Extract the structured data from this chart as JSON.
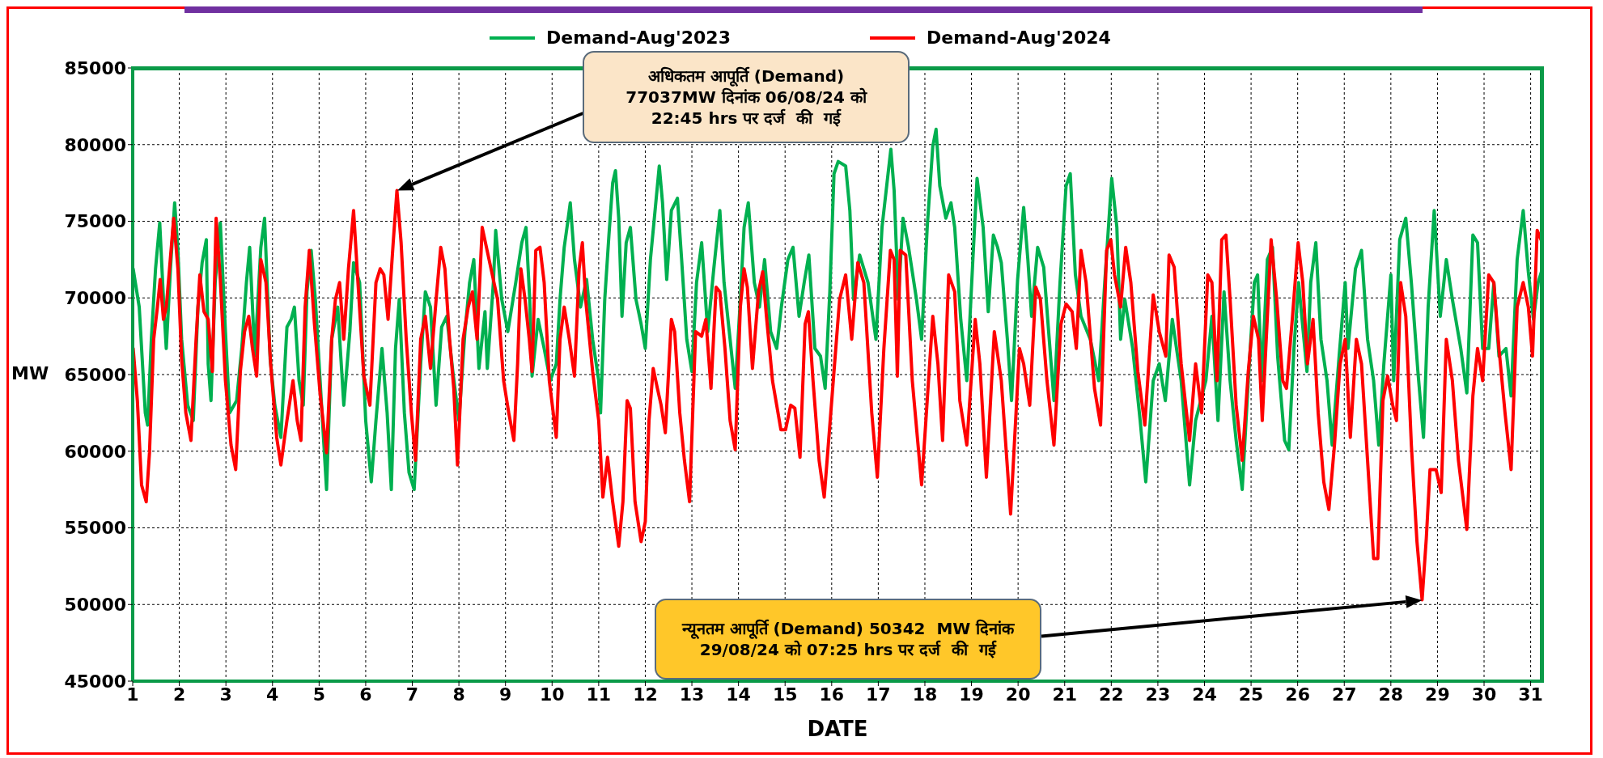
{
  "chart_data": {
    "type": "line",
    "xlabel": "DATE",
    "ylabel": "MW",
    "xlim": [
      1,
      31.25
    ],
    "xticks": [
      1,
      2,
      3,
      4,
      5,
      6,
      7,
      8,
      9,
      10,
      11,
      12,
      13,
      14,
      15,
      16,
      17,
      18,
      19,
      20,
      21,
      22,
      23,
      24,
      25,
      26,
      27,
      28,
      29,
      30,
      31
    ],
    "ylim": [
      45000,
      85000
    ],
    "yticks": [
      45000,
      50000,
      55000,
      60000,
      65000,
      70000,
      75000,
      80000,
      85000
    ],
    "grid": true,
    "legend": "top",
    "annotations": [
      "अधिकतम आपूर्ति (Demand)\n77037MW दिनांक 06/08/24 को\n22:45 hrs पर दर्ज  की  गई",
      "न्यूनतम आपूर्ति (Demand) 50342  MW दिनांक\n29/08/24 को 07:25 hrs पर दर्ज  की  गई"
    ],
    "series": [
      {
        "name": "Demand-Aug'2023",
        "color": "#00b050",
        "x": [
          1.01,
          1.14,
          1.27,
          1.32,
          1.4,
          1.49,
          1.58,
          1.66,
          1.72,
          1.81,
          1.9,
          1.97,
          2.05,
          2.18,
          2.3,
          2.4,
          2.49,
          2.58,
          2.62,
          2.68,
          2.77,
          2.88,
          2.99,
          3.08,
          3.23,
          3.34,
          3.44,
          3.51,
          3.62,
          3.75,
          3.83,
          3.95,
          4.05,
          4.18,
          4.31,
          4.4,
          4.47,
          4.57,
          4.66,
          4.74,
          4.83,
          4.92,
          5.01,
          5.16,
          5.27,
          5.4,
          5.53,
          5.66,
          5.74,
          5.87,
          6.0,
          6.12,
          6.22,
          6.35,
          6.46,
          6.55,
          6.64,
          6.72,
          6.83,
          6.93,
          7.04,
          7.18,
          7.28,
          7.39,
          7.51,
          7.63,
          7.74,
          7.87,
          8.0,
          8.13,
          8.23,
          8.32,
          8.43,
          8.56,
          8.61,
          8.74,
          8.79,
          8.92,
          9.05,
          9.22,
          9.35,
          9.44,
          9.52,
          9.57,
          9.7,
          9.83,
          9.96,
          10.09,
          10.17,
          10.26,
          10.32,
          10.39,
          10.48,
          10.61,
          10.74,
          10.87,
          11.0,
          11.04,
          11.13,
          11.22,
          11.3,
          11.36,
          11.43,
          11.5,
          11.59,
          11.68,
          11.8,
          11.91,
          12.0,
          12.11,
          12.21,
          12.3,
          12.37,
          12.46,
          12.56,
          12.69,
          12.78,
          12.89,
          13.0,
          13.1,
          13.21,
          13.34,
          13.47,
          13.6,
          13.69,
          13.82,
          13.93,
          14.04,
          14.12,
          14.21,
          14.34,
          14.45,
          14.56,
          14.69,
          14.82,
          14.92,
          15.06,
          15.17,
          15.3,
          15.41,
          15.51,
          15.64,
          15.76,
          15.86,
          15.96,
          16.05,
          16.14,
          16.3,
          16.39,
          16.47,
          16.6,
          16.78,
          16.95,
          17.08,
          17.21,
          17.27,
          17.34,
          17.43,
          17.53,
          17.65,
          17.82,
          17.93,
          18.05,
          18.17,
          18.24,
          18.32,
          18.45,
          18.56,
          18.64,
          18.77,
          18.9,
          19.03,
          19.12,
          19.25,
          19.36,
          19.47,
          19.56,
          19.64,
          19.77,
          19.86,
          19.99,
          20.12,
          20.21,
          20.29,
          20.42,
          20.55,
          20.77,
          20.9,
          21.03,
          21.12,
          21.23,
          21.35,
          21.55,
          21.73,
          21.86,
          22.01,
          22.12,
          22.2,
          22.29,
          22.46,
          22.62,
          22.74,
          22.9,
          23.03,
          23.16,
          23.31,
          23.5,
          23.68,
          23.81,
          24.03,
          24.16,
          24.29,
          24.42,
          24.55,
          24.68,
          24.81,
          24.94,
          25.07,
          25.14,
          25.23,
          25.35,
          25.46,
          25.57,
          25.72,
          25.81,
          25.92,
          26.02,
          26.2,
          26.28,
          26.39,
          26.5,
          26.63,
          26.74,
          26.89,
          27.02,
          27.08,
          27.24,
          27.37,
          27.5,
          27.63,
          27.74,
          27.85,
          28.0,
          28.06,
          28.19,
          28.32,
          28.44,
          28.58,
          28.7,
          28.8,
          28.93,
          29.06,
          29.19,
          29.32,
          29.5,
          29.63,
          29.76,
          29.86,
          29.97,
          30.1,
          30.21,
          30.32,
          30.47,
          30.58,
          30.71,
          30.84,
          30.95,
          31.06,
          31.16,
          31.25
        ],
        "values": [
          71900,
          69400,
          62500,
          61700,
          67300,
          71900,
          74900,
          69900,
          66700,
          71900,
          76200,
          73100,
          67300,
          63000,
          62000,
          69400,
          72300,
          73800,
          65700,
          63300,
          71000,
          74900,
          67800,
          62500,
          63300,
          66700,
          71000,
          73300,
          66200,
          73300,
          75200,
          66000,
          63000,
          60900,
          68100,
          68600,
          69400,
          64600,
          63000,
          70400,
          73100,
          69900,
          65200,
          57500,
          67300,
          69400,
          63000,
          67800,
          72300,
          71000,
          62000,
          58000,
          62000,
          66700,
          62500,
          57500,
          66700,
          69900,
          62500,
          58600,
          57500,
          65700,
          70400,
          69400,
          63000,
          68100,
          68800,
          65200,
          62000,
          67800,
          71000,
          72500,
          65400,
          69100,
          65400,
          71000,
          74400,
          69900,
          67800,
          71000,
          73600,
          74600,
          69900,
          64900,
          68600,
          66700,
          64600,
          65700,
          69900,
          73300,
          74600,
          76200,
          72500,
          69400,
          71200,
          67300,
          64600,
          62500,
          69900,
          74100,
          77500,
          78300,
          75200,
          68800,
          73600,
          74600,
          69900,
          68300,
          66700,
          72500,
          75700,
          78600,
          76200,
          71200,
          75700,
          76500,
          72500,
          67300,
          65200,
          71000,
          73600,
          67800,
          71900,
          75700,
          71000,
          67300,
          64100,
          69900,
          74600,
          76200,
          71000,
          69400,
          72500,
          67800,
          66700,
          69400,
          72500,
          73300,
          68800,
          71000,
          72800,
          66700,
          66200,
          64100,
          70400,
          78100,
          78900,
          78600,
          75700,
          69900,
          72800,
          71000,
          67300,
          74600,
          78100,
          79700,
          77000,
          69900,
          75200,
          73300,
          69900,
          67300,
          74600,
          79900,
          81000,
          77300,
          75200,
          76200,
          74600,
          68600,
          64600,
          72500,
          77800,
          74600,
          69100,
          74100,
          73300,
          72300,
          67300,
          63300,
          71200,
          75900,
          72500,
          68800,
          73300,
          72000,
          63300,
          71000,
          77300,
          78100,
          71500,
          68800,
          67300,
          64600,
          71000,
          77800,
          74600,
          67300,
          69900,
          66700,
          62000,
          58000,
          64600,
          65700,
          63300,
          68600,
          64600,
          57800,
          62000,
          64600,
          68800,
          62000,
          70400,
          64600,
          60700,
          57500,
          64600,
          71000,
          71500,
          64600,
          72500,
          73300,
          66200,
          60700,
          60100,
          66700,
          71000,
          65200,
          71000,
          73600,
          67300,
          64600,
          60400,
          66200,
          71000,
          66700,
          71900,
          73100,
          67300,
          64600,
          60400,
          65700,
          71500,
          64600,
          73800,
          75200,
          71000,
          65200,
          60900,
          69400,
          75700,
          68800,
          72500,
          69900,
          66700,
          63800,
          74100,
          73600,
          66700,
          66700,
          71000,
          66200,
          66700,
          63600,
          72500,
          75700,
          71700,
          68600,
          71000,
          71900
        ]
      },
      {
        "name": "Demand-Aug'2024",
        "color": "#ff0000",
        "x": [
          1.01,
          1.1,
          1.19,
          1.29,
          1.36,
          1.45,
          1.53,
          1.59,
          1.66,
          1.72,
          1.79,
          1.88,
          1.97,
          2.05,
          2.14,
          2.25,
          2.36,
          2.44,
          2.53,
          2.62,
          2.71,
          2.79,
          2.88,
          2.99,
          3.11,
          3.21,
          3.31,
          3.4,
          3.49,
          3.57,
          3.66,
          3.75,
          3.86,
          3.96,
          4.09,
          4.18,
          4.31,
          4.44,
          4.53,
          4.61,
          4.7,
          4.79,
          4.9,
          5.02,
          5.16,
          5.27,
          5.35,
          5.44,
          5.53,
          5.63,
          5.74,
          5.83,
          5.96,
          6.09,
          6.22,
          6.31,
          6.39,
          6.48,
          6.59,
          6.67,
          6.76,
          6.87,
          6.98,
          7.07,
          7.18,
          7.28,
          7.39,
          7.52,
          7.61,
          7.7,
          7.8,
          7.89,
          7.97,
          8.09,
          8.2,
          8.29,
          8.39,
          8.5,
          8.83,
          8.96,
          9.07,
          9.18,
          9.26,
          9.33,
          9.42,
          9.51,
          9.57,
          9.65,
          9.74,
          9.83,
          9.94,
          10.09,
          10.17,
          10.26,
          10.37,
          10.48,
          10.58,
          10.65,
          10.72,
          10.87,
          11.0,
          11.09,
          11.19,
          11.3,
          11.43,
          11.52,
          11.61,
          11.68,
          11.78,
          11.91,
          12.0,
          12.08,
          12.17,
          12.26,
          12.34,
          12.43,
          12.56,
          12.63,
          12.74,
          12.84,
          12.95,
          13.08,
          13.21,
          13.3,
          13.41,
          13.52,
          13.6,
          13.71,
          13.82,
          13.93,
          14.04,
          14.12,
          14.19,
          14.3,
          14.43,
          14.52,
          14.6,
          14.73,
          14.82,
          14.91,
          15.01,
          15.12,
          15.21,
          15.32,
          15.43,
          15.5,
          15.6,
          15.73,
          15.84,
          16.17,
          16.3,
          16.43,
          16.56,
          16.69,
          16.86,
          16.98,
          17.12,
          17.26,
          17.34,
          17.41,
          17.47,
          17.59,
          17.73,
          17.93,
          18.05,
          18.17,
          18.28,
          18.38,
          18.51,
          18.64,
          18.75,
          18.9,
          19.08,
          19.18,
          19.32,
          19.49,
          19.64,
          19.84,
          20.03,
          20.12,
          20.25,
          20.38,
          20.48,
          20.62,
          20.77,
          20.92,
          21.03,
          21.16,
          21.25,
          21.35,
          21.46,
          21.64,
          21.77,
          21.9,
          21.99,
          22.07,
          22.2,
          22.31,
          22.42,
          22.57,
          22.72,
          22.9,
          23.03,
          23.17,
          23.24,
          23.35,
          23.5,
          23.68,
          23.81,
          23.94,
          24.07,
          24.16,
          24.27,
          24.37,
          24.46,
          24.55,
          24.68,
          24.81,
          24.94,
          25.05,
          25.16,
          25.24,
          25.35,
          25.43,
          25.55,
          25.68,
          25.76,
          25.89,
          26.01,
          26.11,
          26.21,
          26.33,
          26.44,
          26.56,
          26.67,
          26.79,
          26.91,
          27.02,
          27.13,
          27.26,
          27.37,
          27.5,
          27.63,
          27.72,
          27.83,
          27.93,
          28.04,
          28.12,
          28.21,
          28.32,
          28.44,
          28.56,
          28.67,
          28.76,
          28.84,
          28.97,
          29.08,
          29.19,
          29.32,
          29.45,
          29.63,
          29.76,
          29.86,
          29.97,
          30.1,
          30.21,
          30.32,
          30.45,
          30.58,
          30.71,
          30.84,
          30.95,
          31.04,
          31.14,
          31.25
        ],
        "values": [
          66700,
          63300,
          57800,
          56700,
          59900,
          67300,
          69400,
          71200,
          68600,
          69400,
          71900,
          75200,
          71900,
          66000,
          62500,
          60700,
          67300,
          71500,
          69100,
          68600,
          65200,
          75200,
          71200,
          64600,
          60400,
          58800,
          65200,
          67800,
          68800,
          66700,
          64900,
          72500,
          71000,
          65700,
          60900,
          59100,
          62000,
          64600,
          62000,
          60700,
          69400,
          73100,
          68300,
          63800,
          59900,
          67300,
          69900,
          71000,
          67300,
          71900,
          75700,
          71200,
          64900,
          63000,
          71000,
          71900,
          71500,
          68600,
          73600,
          77000,
          73600,
          67300,
          62500,
          59400,
          67300,
          68800,
          65400,
          70200,
          73300,
          71900,
          67300,
          64100,
          59100,
          67300,
          69400,
          70400,
          67300,
          74600,
          69900,
          64600,
          62500,
          60700,
          65700,
          71900,
          69900,
          67300,
          65200,
          73100,
          73300,
          71000,
          64600,
          60900,
          67300,
          69400,
          67300,
          64900,
          71900,
          73600,
          69900,
          65200,
          62000,
          57000,
          59600,
          56700,
          53800,
          56700,
          63300,
          62800,
          56700,
          54100,
          55400,
          62000,
          65400,
          64100,
          63000,
          61200,
          68600,
          67800,
          62500,
          59400,
          56700,
          67800,
          67500,
          68600,
          64100,
          70700,
          70400,
          66700,
          62000,
          60100,
          69400,
          71900,
          70700,
          65400,
          70400,
          71700,
          68800,
          64600,
          63000,
          61400,
          61400,
          63000,
          62800,
          59600,
          68300,
          69100,
          64600,
          59400,
          57000,
          69900,
          71500,
          67300,
          72300,
          71000,
          62500,
          58300,
          66700,
          73100,
          72500,
          64900,
          73100,
          72800,
          64600,
          57800,
          63300,
          68800,
          65700,
          60700,
          71500,
          70400,
          63300,
          60400,
          68600,
          65700,
          58300,
          67800,
          64600,
          55900,
          66700,
          65700,
          63000,
          70700,
          69900,
          64600,
          60400,
          68300,
          69600,
          69100,
          66700,
          73100,
          71000,
          64100,
          61700,
          73100,
          73800,
          71500,
          69400,
          73300,
          71000,
          65200,
          61700,
          70200,
          67800,
          66200,
          72800,
          72000,
          65700,
          60700,
          65700,
          62500,
          71500,
          71000,
          64600,
          73800,
          74100,
          69900,
          63000,
          59400,
          65200,
          68800,
          67300,
          62000,
          68800,
          73800,
          69900,
          64600,
          64100,
          68800,
          73600,
          71000,
          65700,
          68600,
          62500,
          58000,
          56200,
          60400,
          65700,
          67300,
          60900,
          67300,
          65700,
          59400,
          53000,
          53000,
          63300,
          64900,
          63000,
          62000,
          71000,
          68800,
          60400,
          54100,
          50300,
          54300,
          58800,
          58800,
          57300,
          67300,
          64600,
          59400,
          54900,
          63600,
          66700,
          64600,
          71500,
          71000,
          66700,
          62500,
          58800,
          69400,
          71000,
          69400,
          66200,
          74400,
          73600
        ]
      }
    ]
  }
}
